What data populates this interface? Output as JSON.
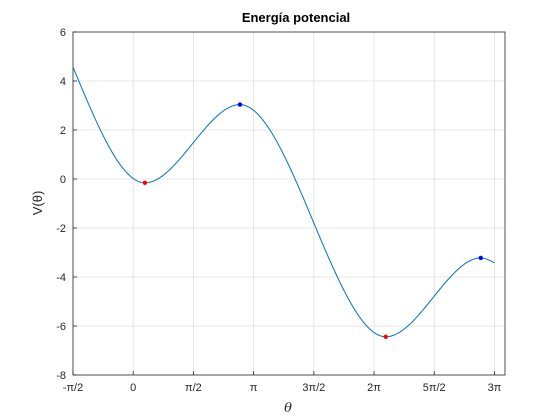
{
  "chart_data": {
    "type": "line",
    "title": "Energía potencial",
    "xlabel": "θ",
    "ylabel": "V(θ)",
    "xlim": [
      -1.5708,
      9.7
    ],
    "ylim": [
      -8,
      6
    ],
    "grid": true,
    "x_ticks": [
      {
        "value": -1.5708,
        "label": "-π/2"
      },
      {
        "value": 0,
        "label": "0"
      },
      {
        "value": 1.5708,
        "label": "π/2"
      },
      {
        "value": 3.1416,
        "label": "π"
      },
      {
        "value": 4.7124,
        "label": "3π/2"
      },
      {
        "value": 6.2832,
        "label": "2π"
      },
      {
        "value": 7.854,
        "label": "5π/2"
      },
      {
        "value": 9.4248,
        "label": "3π"
      }
    ],
    "y_ticks": [
      {
        "value": 6,
        "label": "6"
      },
      {
        "value": 4,
        "label": "4"
      },
      {
        "value": 2,
        "label": "2"
      },
      {
        "value": 0,
        "label": "0"
      },
      {
        "value": -2,
        "label": "-2"
      },
      {
        "value": -4,
        "label": "-4"
      },
      {
        "value": -6,
        "label": "-6"
      },
      {
        "value": -8,
        "label": "-8"
      }
    ],
    "series": [
      {
        "color": "#0072BD",
        "x": [
          -1.5708,
          0.3059,
          2.7854,
          6.5888,
          9.0685,
          9.4248
        ],
        "y": [
          4.5708,
          -0.1573,
          3.0371,
          -6.4405,
          -3.2204,
          -3.4248
        ]
      }
    ],
    "markers": [
      {
        "x": 0.3059,
        "y": -0.1573,
        "color": "#FF0000"
      },
      {
        "x": 2.7854,
        "y": 3.0371,
        "color": "#0000FF"
      },
      {
        "x": 6.5888,
        "y": -6.4405,
        "color": "#FF0000"
      },
      {
        "x": 9.0685,
        "y": -3.2204,
        "color": "#0000FF"
      }
    ]
  }
}
